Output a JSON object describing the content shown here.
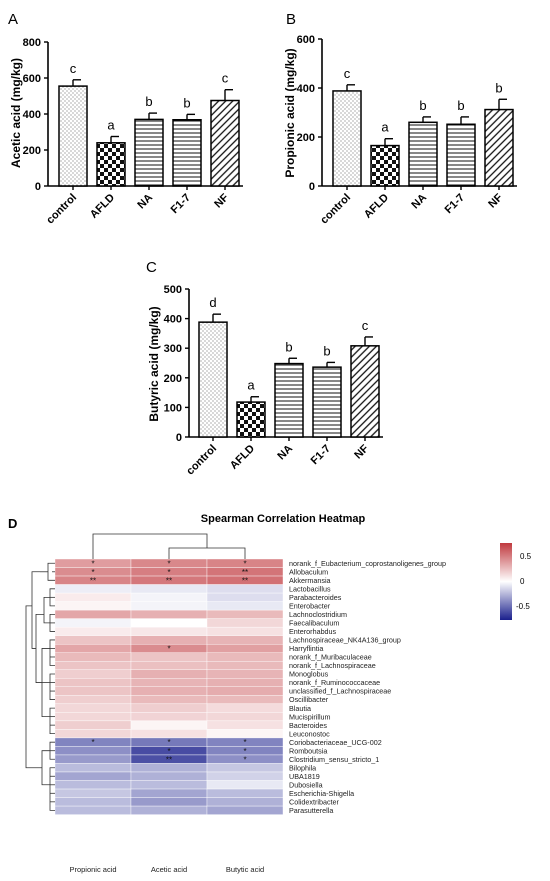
{
  "panels": [
    {
      "letter": "A",
      "ylabel": "Acetic acid (mg/kg)",
      "yticks": [
        "0",
        "200",
        "400",
        "600",
        "800"
      ],
      "chart_data": {
        "type": "bar",
        "categories": [
          "control",
          "AFLD",
          "NA",
          "F1-7",
          "NF"
        ],
        "values": [
          555,
          240,
          370,
          368,
          475
        ],
        "errors": [
          35,
          35,
          35,
          30,
          60
        ],
        "letters": [
          "c",
          "a",
          "b",
          "b",
          "c"
        ],
        "ylim": [
          0,
          800
        ]
      }
    },
    {
      "letter": "B",
      "ylabel": "Propionic acid (mg/kg)",
      "yticks": [
        "0",
        "200",
        "400",
        "600"
      ],
      "chart_data": {
        "type": "bar",
        "categories": [
          "control",
          "AFLD",
          "NA",
          "F1-7",
          "NF"
        ],
        "values": [
          388,
          165,
          260,
          252,
          312
        ],
        "errors": [
          25,
          28,
          22,
          30,
          42
        ],
        "letters": [
          "c",
          "a",
          "b",
          "b",
          "b"
        ],
        "ylim": [
          0,
          600
        ]
      }
    },
    {
      "letter": "C",
      "ylabel": "Butyric acid (mg/kg)",
      "yticks": [
        "0",
        "100",
        "200",
        "300",
        "400",
        "500"
      ],
      "chart_data": {
        "type": "bar",
        "categories": [
          "control",
          "AFLD",
          "NA",
          "F1-7",
          "NF"
        ],
        "values": [
          388,
          118,
          248,
          236,
          308
        ],
        "errors": [
          27,
          18,
          18,
          16,
          30
        ],
        "letters": [
          "d",
          "a",
          "b",
          "b",
          "c"
        ],
        "ylim": [
          0,
          500
        ]
      }
    }
  ],
  "heatmap": {
    "letter": "D",
    "title": "Spearman Correlation Heatmap",
    "chart_data": {
      "type": "heatmap",
      "columns": [
        "Propionic acid",
        "Acetic acid",
        "Butytic acid"
      ],
      "rows": [
        "norank_f_Eubacterium_coprostanoligenes_group",
        "Allobaculum",
        "Akkermansia",
        "Lactobacillus",
        "Parabacteroides",
        "Enterobacter",
        "Lachnoclostridium",
        "Faecalibaculum",
        "Enterorhabdus",
        "Lachnospiraceae_NK4A136_group",
        "Harryflintia",
        "norank_f_Muribaculaceae",
        "norank_f_Lachnospiraceae",
        "Monoglobus",
        "norank_f_Ruminococcaceae",
        "unclassified_f_Lachnospiraceae",
        "Oscillibacter",
        "Blautia",
        "Mucispirillum",
        "Bacteroides",
        "Leuconostoc",
        "Coriobacteriaceae_UCG-002",
        "Romboutsia",
        "Clostridium_sensu_stricto_1",
        "Bilophila",
        "UBA1819",
        "Dubosiella",
        "Escherichia-Shigella",
        "Colidextribacter",
        "Parasutterella"
      ],
      "values": [
        [
          0.5,
          0.6,
          0.62
        ],
        [
          0.58,
          0.65,
          0.7
        ],
        [
          0.62,
          0.68,
          0.72
        ],
        [
          -0.08,
          -0.1,
          -0.15
        ],
        [
          0.1,
          -0.05,
          -0.15
        ],
        [
          0.05,
          -0.05,
          -0.1
        ],
        [
          0.45,
          0.4,
          0.35
        ],
        [
          -0.05,
          0.0,
          0.2
        ],
        [
          0.1,
          0.12,
          0.15
        ],
        [
          0.3,
          0.4,
          0.38
        ],
        [
          0.45,
          0.58,
          0.48
        ],
        [
          0.35,
          0.3,
          0.35
        ],
        [
          0.3,
          0.32,
          0.35
        ],
        [
          0.25,
          0.4,
          0.38
        ],
        [
          0.3,
          0.38,
          0.4
        ],
        [
          0.3,
          0.4,
          0.42
        ],
        [
          0.25,
          0.35,
          0.35
        ],
        [
          0.2,
          0.25,
          0.18
        ],
        [
          0.2,
          0.22,
          0.2
        ],
        [
          0.25,
          0.05,
          0.15
        ],
        [
          0.2,
          0.15,
          0.05
        ],
        [
          -0.55,
          -0.6,
          -0.55
        ],
        [
          -0.5,
          -0.8,
          -0.55
        ],
        [
          -0.45,
          -0.78,
          -0.5
        ],
        [
          -0.3,
          -0.35,
          -0.25
        ],
        [
          -0.4,
          -0.35,
          -0.2
        ],
        [
          -0.3,
          -0.3,
          -0.1
        ],
        [
          -0.25,
          -0.4,
          -0.3
        ],
        [
          -0.3,
          -0.45,
          -0.35
        ],
        [
          -0.3,
          -0.35,
          -0.4
        ]
      ],
      "stars": [
        [
          "*",
          "*",
          "*"
        ],
        [
          "*",
          "*",
          "**"
        ],
        [
          "**",
          "**",
          "**"
        ],
        [
          "",
          "",
          ""
        ],
        [
          "",
          "",
          ""
        ],
        [
          "",
          "",
          ""
        ],
        [
          "",
          "",
          ""
        ],
        [
          "",
          "",
          ""
        ],
        [
          "",
          "",
          ""
        ],
        [
          "",
          "",
          ""
        ],
        [
          "",
          "*",
          ""
        ],
        [
          "",
          "",
          ""
        ],
        [
          "",
          "",
          ""
        ],
        [
          "",
          "",
          ""
        ],
        [
          "",
          "",
          ""
        ],
        [
          "",
          "",
          ""
        ],
        [
          "",
          "",
          ""
        ],
        [
          "",
          "",
          ""
        ],
        [
          "",
          "",
          ""
        ],
        [
          "",
          "",
          ""
        ],
        [
          "",
          "",
          ""
        ],
        [
          "*",
          "*",
          "*"
        ],
        [
          "",
          "*",
          "*"
        ],
        [
          "",
          "**",
          "*"
        ],
        [
          "",
          "",
          ""
        ],
        [
          "",
          "",
          ""
        ],
        [
          "",
          "",
          ""
        ],
        [
          "",
          "",
          ""
        ],
        [
          "",
          "",
          ""
        ],
        [
          "",
          "",
          ""
        ]
      ],
      "legend_ticks": [
        "0.5",
        "0",
        "-0.5"
      ],
      "vmin": -1,
      "vmax": 1,
      "colors": {
        "high": "#c0393e",
        "mid": "#ffffff",
        "low": "#1a1f8c"
      }
    }
  }
}
